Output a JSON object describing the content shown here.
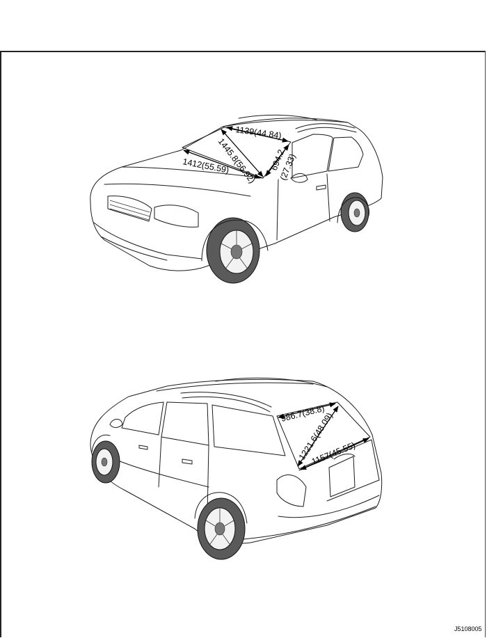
{
  "figure_code": "J5108005",
  "front_view": {
    "windshield_top_width": "1139(44.84)",
    "windshield_diagonal": "1445.8(56.92)",
    "windshield_bottom_width": "1412(55.59)",
    "windshield_height_line1": "694.2",
    "windshield_height_line2": "(27.33)"
  },
  "rear_view": {
    "rear_glass_top_width": "986.7(38.8)",
    "rear_glass_diagonal": "1221.6(48.09)",
    "rear_glass_bottom_width": "1157(45.55)"
  }
}
